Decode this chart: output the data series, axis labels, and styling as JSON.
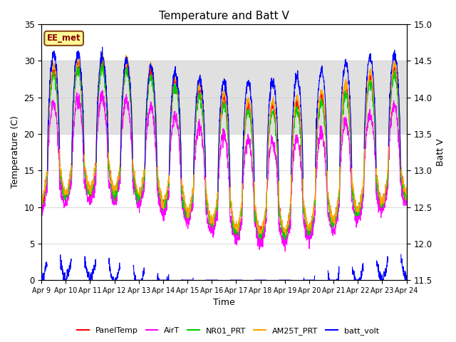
{
  "title": "Temperature and Batt V",
  "xlabel": "Time",
  "ylabel_left": "Temperature (C)",
  "ylabel_right": "Batt V",
  "xlim": [
    0,
    15
  ],
  "ylim_left": [
    0,
    35
  ],
  "ylim_right": [
    11.5,
    15.0
  ],
  "x_tick_labels": [
    "Apr 9",
    "Apr 10",
    "Apr 11",
    "Apr 12",
    "Apr 13",
    "Apr 14",
    "Apr 15",
    "Apr 16",
    "Apr 17",
    "Apr 18",
    "Apr 19",
    "Apr 20",
    "Apr 21",
    "Apr 22",
    "Apr 23",
    "Apr 24"
  ],
  "shaded_ymin": 20,
  "shaded_ymax": 30,
  "annotation_text": "EE_met",
  "annotation_color": "#8B0000",
  "annotation_bg": "#FFFF99",
  "annotation_edge": "#8B4513",
  "line_colors": {
    "PanelTemp": "#FF0000",
    "AirT": "#FF00FF",
    "NR01_PRT": "#00CC00",
    "AM25T_PRT": "#FFA500",
    "batt_volt": "#0000FF"
  },
  "legend_labels": [
    "PanelTemp",
    "AirT",
    "NR01_PRT",
    "AM25T_PRT",
    "batt_volt"
  ],
  "background_color": "#ffffff",
  "grid_color": "#cccccc",
  "shaded_color": "#e0e0e0",
  "figwidth": 6.4,
  "figheight": 4.8,
  "dpi": 100
}
